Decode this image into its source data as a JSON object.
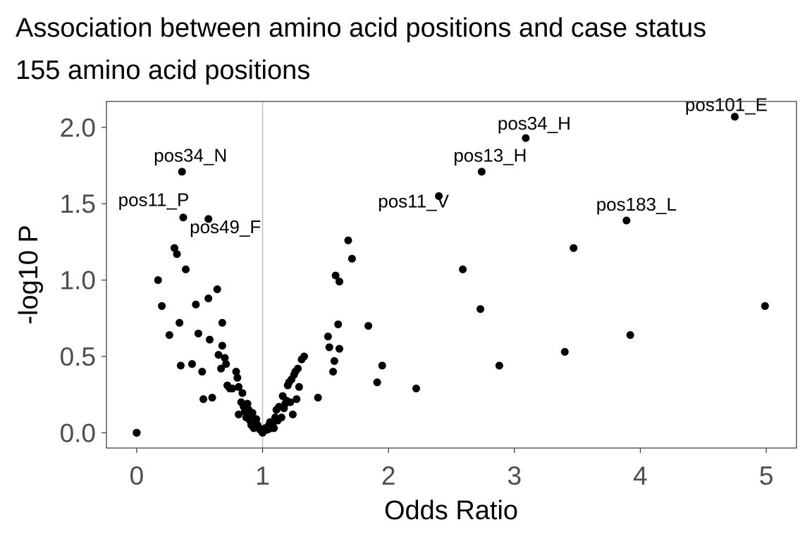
{
  "chart_data": {
    "type": "scatter",
    "title": "Association between amino acid positions and case status",
    "subtitle": "155 amino acid positions",
    "xlabel": "Odds Ratio",
    "ylabel": "-log10 P",
    "xlim": [
      -0.24,
      5.24
    ],
    "ylim": [
      -0.1,
      2.17
    ],
    "xticks": [
      "0",
      "1",
      "2",
      "3",
      "4",
      "5"
    ],
    "yticks": [
      "0.0",
      "0.5",
      "1.0",
      "1.5",
      "2.0"
    ],
    "grid": false,
    "legend": "none",
    "reference_line_x": 1,
    "colors": {
      "points": "#000000",
      "reference_line": "#bdbdbd",
      "frame": "#333333"
    },
    "points": [
      [
        0,
        0
      ],
      [
        0,
        0
      ],
      [
        0,
        0
      ],
      [
        0.17,
        1.0
      ],
      [
        0.2,
        0.83
      ],
      [
        0.26,
        0.64
      ],
      [
        0.3,
        1.21
      ],
      [
        0.32,
        1.17
      ],
      [
        0.34,
        0.72
      ],
      [
        0.35,
        0.44
      ],
      [
        0.36,
        1.71
      ],
      [
        0.37,
        1.41
      ],
      [
        0.39,
        1.07
      ],
      [
        0.44,
        0.45
      ],
      [
        0.47,
        0.84
      ],
      [
        0.49,
        0.65
      ],
      [
        0.52,
        0.4
      ],
      [
        0.53,
        0.22
      ],
      [
        0.57,
        0.88
      ],
      [
        0.57,
        1.4
      ],
      [
        0.58,
        0.61
      ],
      [
        0.6,
        0.23
      ],
      [
        0.64,
        0.94
      ],
      [
        0.65,
        0.51
      ],
      [
        0.67,
        0.42
      ],
      [
        0.68,
        0.72
      ],
      [
        0.68,
        0.57
      ],
      [
        0.7,
        0.49
      ],
      [
        0.71,
        0.45
      ],
      [
        0.72,
        0.31
      ],
      [
        0.74,
        0.29
      ],
      [
        0.76,
        0.29
      ],
      [
        0.79,
        0.4
      ],
      [
        0.8,
        0.36
      ],
      [
        0.81,
        0.12
      ],
      [
        0.81,
        0.3
      ],
      [
        0.83,
        0.2
      ],
      [
        0.84,
        0.26
      ],
      [
        0.85,
        0.17
      ],
      [
        0.86,
        0.14
      ],
      [
        0.87,
        0.1
      ],
      [
        0.88,
        0.19
      ],
      [
        0.89,
        0.15
      ],
      [
        0.9,
        0.12
      ],
      [
        0.9,
        0.08
      ],
      [
        0.91,
        0.05
      ],
      [
        0.92,
        0.13
      ],
      [
        0.93,
        0.03
      ],
      [
        0.94,
        0.07
      ],
      [
        0.95,
        0.09
      ],
      [
        0.96,
        0.05
      ],
      [
        0.97,
        0.03
      ],
      [
        0.98,
        0.02
      ],
      [
        0.99,
        0.02
      ],
      [
        1.0,
        0.0
      ],
      [
        1.01,
        0.01
      ],
      [
        1.02,
        0.03
      ],
      [
        1.04,
        0.02
      ],
      [
        1.05,
        0.05
      ],
      [
        1.06,
        0.07
      ],
      [
        1.07,
        0.03
      ],
      [
        1.08,
        0.06
      ],
      [
        1.09,
        0.03
      ],
      [
        1.1,
        0.1
      ],
      [
        1.11,
        0.15
      ],
      [
        1.12,
        0.08
      ],
      [
        1.13,
        0.17
      ],
      [
        1.15,
        0.1
      ],
      [
        1.16,
        0.24
      ],
      [
        1.17,
        0.16
      ],
      [
        1.18,
        0.19
      ],
      [
        1.19,
        0.21
      ],
      [
        1.2,
        0.31
      ],
      [
        1.21,
        0.33
      ],
      [
        1.22,
        0.2
      ],
      [
        1.23,
        0.35
      ],
      [
        1.24,
        0.12
      ],
      [
        1.25,
        0.38
      ],
      [
        1.26,
        0.4
      ],
      [
        1.27,
        0.22
      ],
      [
        1.28,
        0.42
      ],
      [
        1.29,
        0.3
      ],
      [
        1.31,
        0.48
      ],
      [
        1.33,
        0.5
      ],
      [
        1.44,
        0.23
      ],
      [
        1.52,
        0.63
      ],
      [
        1.53,
        0.56
      ],
      [
        1.56,
        0.4
      ],
      [
        1.57,
        0.47
      ],
      [
        1.58,
        1.03
      ],
      [
        1.6,
        0.71
      ],
      [
        1.61,
        0.99
      ],
      [
        1.61,
        0.55
      ],
      [
        1.68,
        1.26
      ],
      [
        1.71,
        1.14
      ],
      [
        1.84,
        0.7
      ],
      [
        1.91,
        0.33
      ],
      [
        1.95,
        0.44
      ],
      [
        2.22,
        0.29
      ],
      [
        2.4,
        1.55
      ],
      [
        2.59,
        1.07
      ],
      [
        2.73,
        0.81
      ],
      [
        2.74,
        1.71
      ],
      [
        2.88,
        0.44
      ],
      [
        3.09,
        1.93
      ],
      [
        3.4,
        0.53
      ],
      [
        3.47,
        1.21
      ],
      [
        3.89,
        1.39
      ],
      [
        3.92,
        0.64
      ],
      [
        4.75,
        2.07
      ],
      [
        4.99,
        0.83
      ]
    ],
    "annotations": [
      {
        "text": "pos101_E",
        "x": 4.75,
        "y": 2.07
      },
      {
        "text": "pos34_H",
        "x": 3.09,
        "y": 1.93
      },
      {
        "text": "pos34_N",
        "x": 0.36,
        "y": 1.71
      },
      {
        "text": "pos13_H",
        "x": 2.74,
        "y": 1.71
      },
      {
        "text": "pos11_V",
        "x": 2.4,
        "y": 1.55
      },
      {
        "text": "pos11_P",
        "x": 0.37,
        "y": 1.41
      },
      {
        "text": "pos49_F",
        "x": 0.57,
        "y": 1.4
      },
      {
        "text": "pos183_L",
        "x": 3.89,
        "y": 1.39
      }
    ]
  }
}
